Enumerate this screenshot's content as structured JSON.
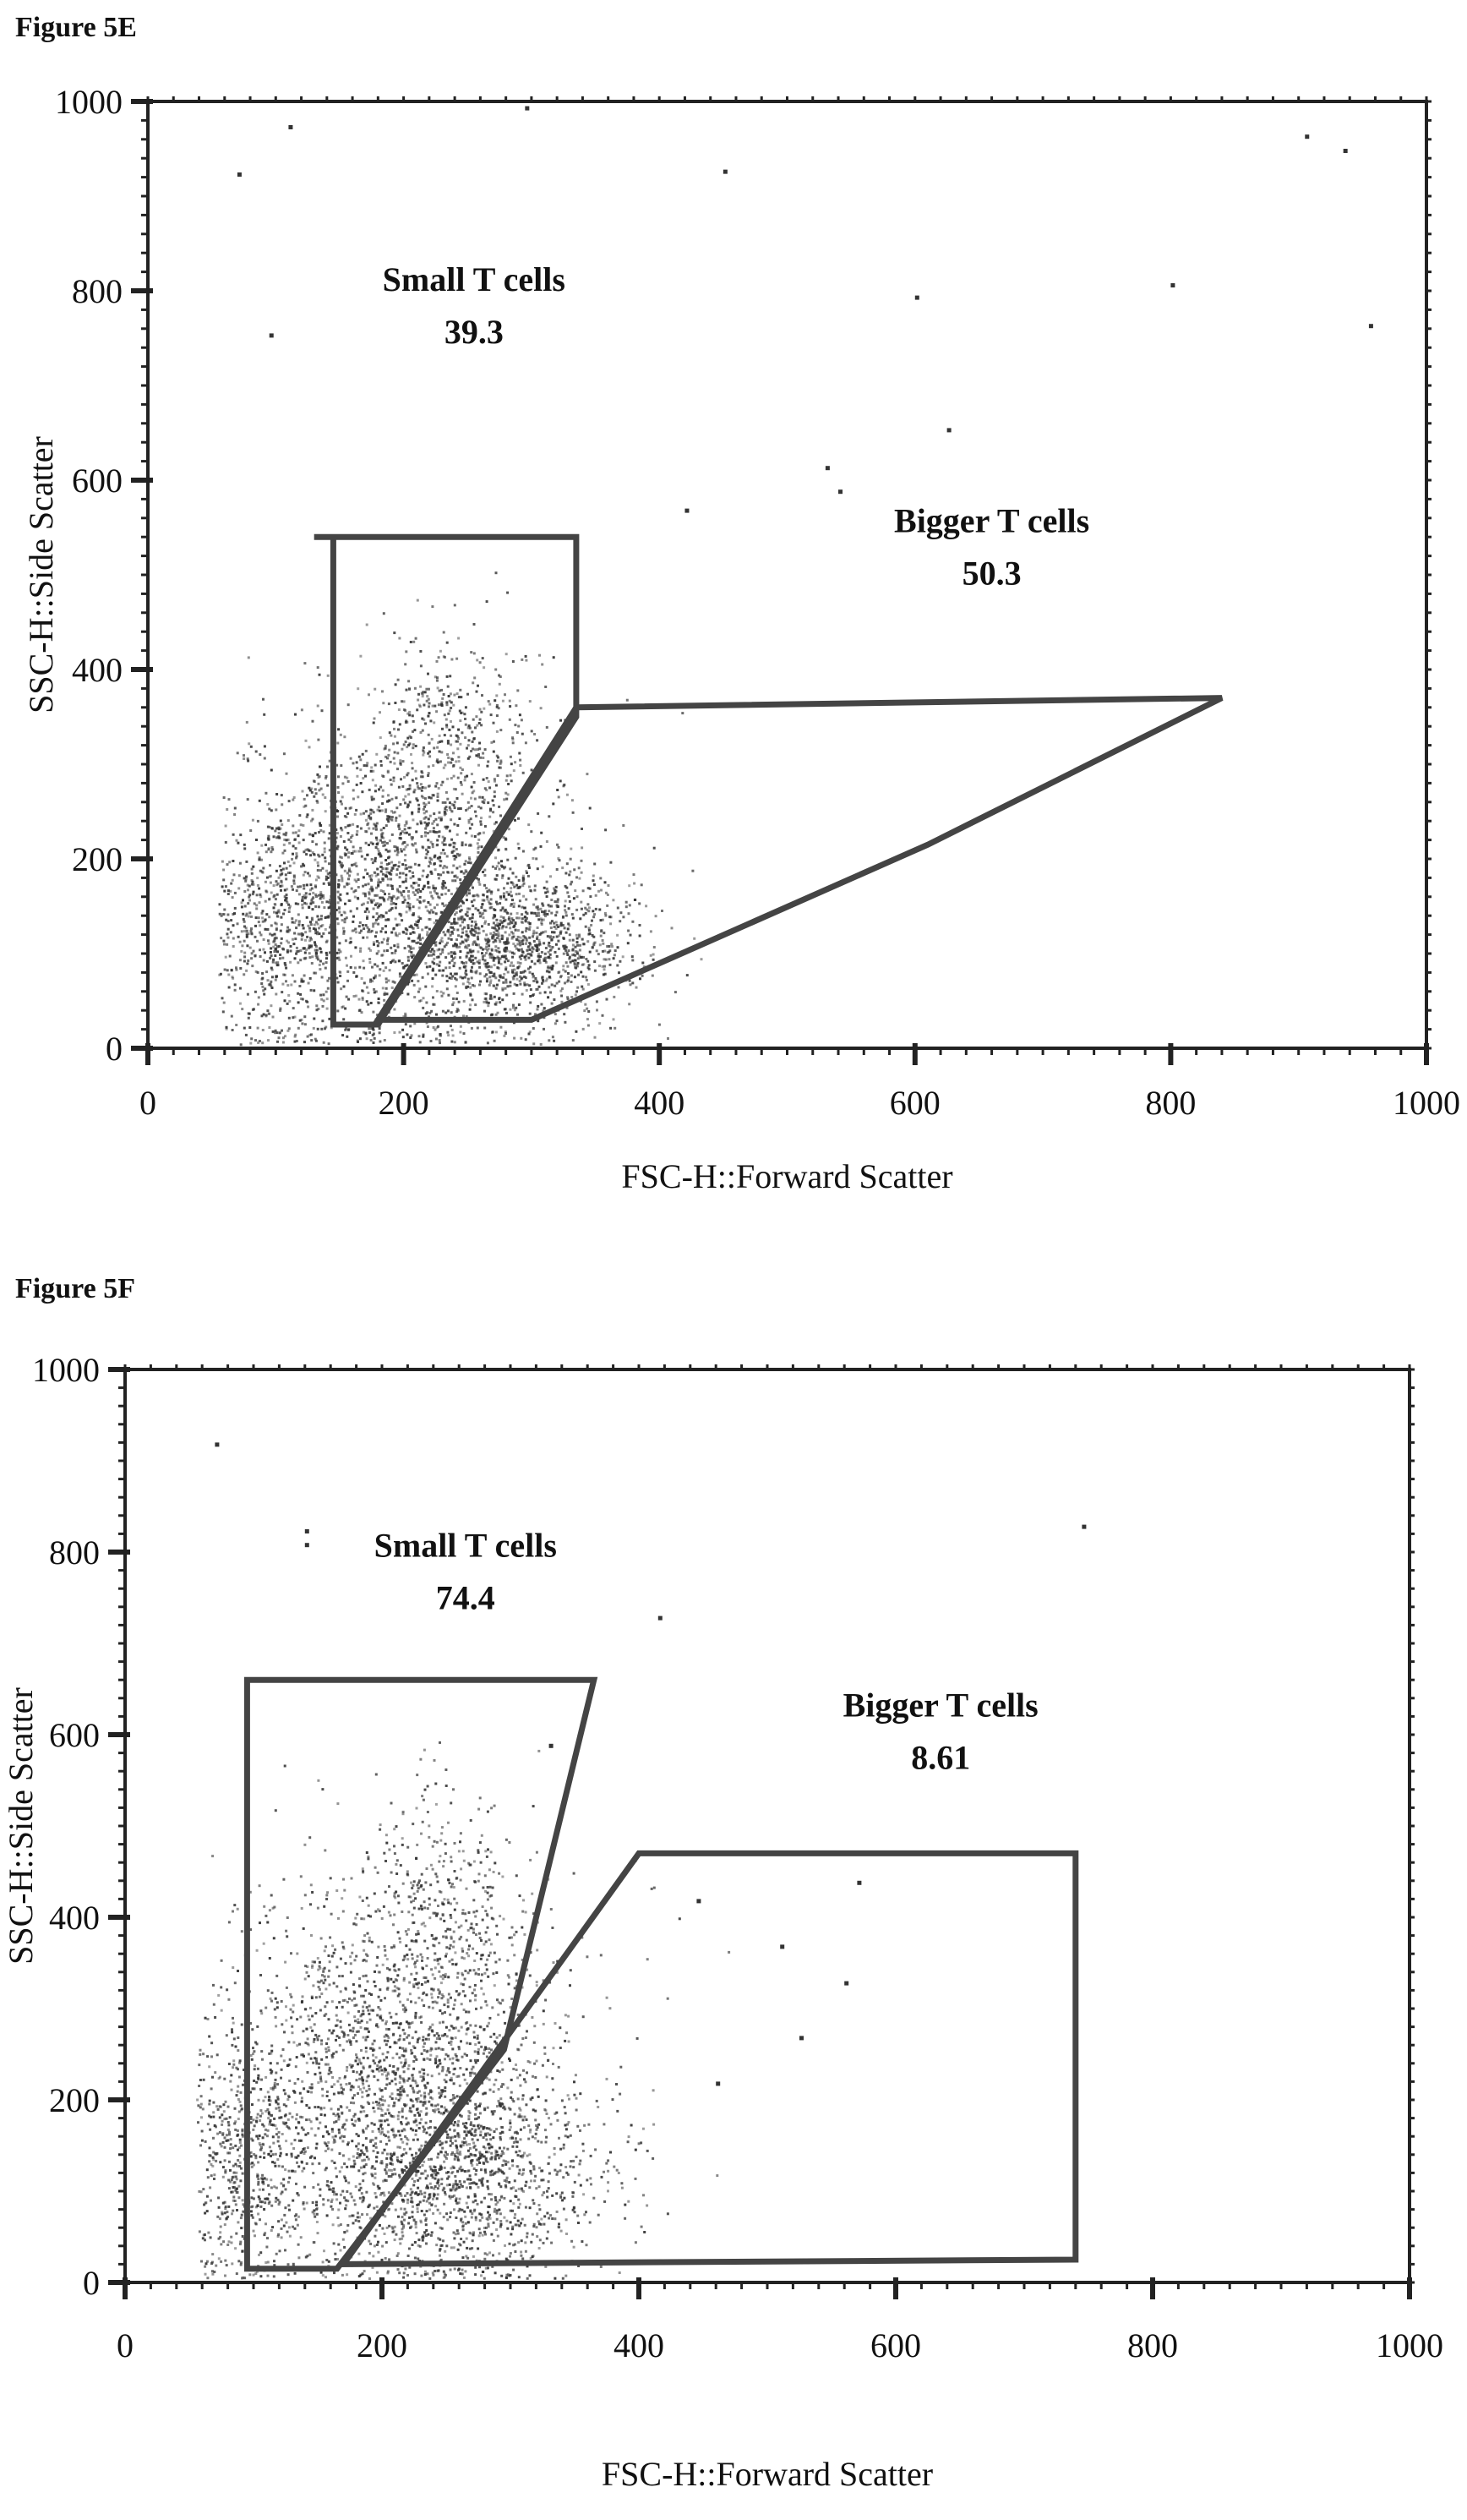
{
  "chart_data": [
    {
      "type": "scatter",
      "title": "Figure 5E",
      "xlabel": "FSC-H::Forward Scatter",
      "ylabel": "SSC-H::Side Scatter",
      "xlim": [
        0,
        1000
      ],
      "ylim": [
        0,
        1000
      ],
      "xticks": [
        "0",
        "200",
        "400",
        "600",
        "800",
        "1000"
      ],
      "yticks": [
        "0",
        "200",
        "400",
        "600",
        "800",
        "1000"
      ],
      "gates": [
        {
          "name": "Small T cells",
          "value": "39.3",
          "label_pos": [
            255,
            800
          ],
          "polygon": [
            [
              130,
              540
            ],
            [
              335,
              540
            ],
            [
              335,
              350
            ],
            [
              180,
              25
            ],
            [
              145,
              25
            ],
            [
              145,
              540
            ]
          ]
        },
        {
          "name": "Bigger T cells",
          "value": "50.3",
          "label_pos": [
            660,
            545
          ],
          "polygon": [
            [
              335,
              360
            ],
            [
              840,
              370
            ],
            [
              610,
              215
            ],
            [
              300,
              30
            ],
            [
              180,
              30
            ],
            [
              335,
              360
            ]
          ]
        }
      ],
      "clusters": [
        {
          "cx": 200,
          "cy": 170,
          "sx": 60,
          "sy": 85,
          "n": 1900
        },
        {
          "cx": 290,
          "cy": 110,
          "sx": 45,
          "sy": 40,
          "n": 1100
        },
        {
          "cx": 100,
          "cy": 130,
          "sx": 35,
          "sy": 70,
          "n": 700
        },
        {
          "cx": 235,
          "cy": 330,
          "sx": 35,
          "sy": 60,
          "n": 400
        }
      ],
      "scatter_points": [
        [
          110,
          975
        ],
        [
          295,
          995
        ],
        [
          450,
          928
        ],
        [
          600,
          795
        ],
        [
          800,
          808
        ],
        [
          905,
          965
        ],
        [
          935,
          950
        ],
        [
          955,
          765
        ],
        [
          70,
          925
        ],
        [
          95,
          755
        ],
        [
          625,
          655
        ],
        [
          530,
          615
        ],
        [
          420,
          570
        ],
        [
          540,
          590
        ]
      ]
    },
    {
      "type": "scatter",
      "title": "Figure 5F",
      "xlabel": "FSC-H::Forward Scatter",
      "ylabel": "SSC-H::Side Scatter",
      "xlim": [
        0,
        1000
      ],
      "ylim": [
        0,
        1000
      ],
      "xticks": [
        "0",
        "200",
        "400",
        "600",
        "800",
        "1000"
      ],
      "yticks": [
        "0",
        "200",
        "400",
        "600",
        "800",
        "1000"
      ],
      "gates": [
        {
          "name": "Small T cells",
          "value": "74.4",
          "label_pos": [
            265,
            795
          ],
          "polygon": [
            [
              95,
              660
            ],
            [
              365,
              660
            ],
            [
              295,
              255
            ],
            [
              165,
              15
            ],
            [
              95,
              15
            ],
            [
              95,
              660
            ]
          ]
        },
        {
          "name": "Bigger T cells",
          "value": "8.61",
          "label_pos": [
            635,
            620
          ],
          "polygon": [
            [
              400,
              470
            ],
            [
              740,
              470
            ],
            [
              740,
              25
            ],
            [
              170,
              20
            ],
            [
              400,
              470
            ]
          ]
        }
      ],
      "clusters": [
        {
          "cx": 210,
          "cy": 220,
          "sx": 65,
          "sy": 110,
          "n": 2300
        },
        {
          "cx": 270,
          "cy": 110,
          "sx": 55,
          "sy": 55,
          "n": 900
        },
        {
          "cx": 90,
          "cy": 130,
          "sx": 30,
          "sy": 70,
          "n": 600
        },
        {
          "cx": 245,
          "cy": 400,
          "sx": 30,
          "sy": 70,
          "n": 300
        }
      ],
      "scatter_points": [
        [
          70,
          920
        ],
        [
          140,
          825
        ],
        [
          140,
          810
        ],
        [
          415,
          730
        ],
        [
          745,
          830
        ],
        [
          445,
          420
        ],
        [
          570,
          440
        ],
        [
          560,
          330
        ],
        [
          510,
          370
        ],
        [
          525,
          270
        ],
        [
          460,
          220
        ],
        [
          330,
          590
        ],
        [
          395,
          465
        ]
      ]
    }
  ]
}
